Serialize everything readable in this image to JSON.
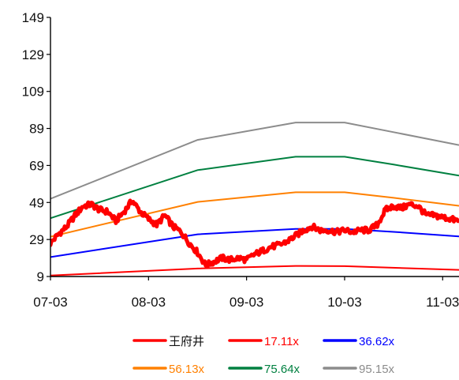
{
  "chart_data": {
    "type": "line",
    "title": "",
    "xlabel": "",
    "ylabel": "",
    "ylim": [
      9,
      149
    ],
    "yticks": [
      9,
      29,
      49,
      69,
      89,
      109,
      129,
      149
    ],
    "xticks": [
      "07-03",
      "08-03",
      "09-03",
      "10-03",
      "11-03"
    ],
    "xlim": [
      "2007-03",
      "2011-05"
    ],
    "grid": false,
    "legend_placement": "bottom",
    "series": [
      {
        "name": "王府井",
        "color": "#ff0000",
        "style": "thick",
        "points": [
          [
            "2007-03",
            27
          ],
          [
            "2007-04",
            32
          ],
          [
            "2007-05",
            36
          ],
          [
            "2007-06",
            42
          ],
          [
            "2007-07",
            47
          ],
          [
            "2007-08",
            48
          ],
          [
            "2007-09",
            45
          ],
          [
            "2007-10",
            44
          ],
          [
            "2007-11",
            39
          ],
          [
            "2007-12",
            44
          ],
          [
            "2008-01",
            50
          ],
          [
            "2008-02",
            44
          ],
          [
            "2008-03",
            40
          ],
          [
            "2008-04",
            37
          ],
          [
            "2008-05",
            42
          ],
          [
            "2008-06",
            36
          ],
          [
            "2008-07",
            33
          ],
          [
            "2008-08",
            27
          ],
          [
            "2008-09",
            22
          ],
          [
            "2008-10",
            15
          ],
          [
            "2008-11",
            17
          ],
          [
            "2008-12",
            19
          ],
          [
            "2009-01",
            18
          ],
          [
            "2009-02",
            19
          ],
          [
            "2009-03",
            18
          ],
          [
            "2009-04",
            21
          ],
          [
            "2009-05",
            23
          ],
          [
            "2009-06",
            25
          ],
          [
            "2009-07",
            26
          ],
          [
            "2009-08",
            28
          ],
          [
            "2009-09",
            31
          ],
          [
            "2009-10",
            34
          ],
          [
            "2009-11",
            36
          ],
          [
            "2009-12",
            34
          ],
          [
            "2010-01",
            34
          ],
          [
            "2010-02",
            33
          ],
          [
            "2010-03",
            34
          ],
          [
            "2010-04",
            33
          ],
          [
            "2010-05",
            34
          ],
          [
            "2010-06",
            34
          ],
          [
            "2010-07",
            37
          ],
          [
            "2010-08",
            45
          ],
          [
            "2010-09",
            47
          ],
          [
            "2010-10",
            46
          ],
          [
            "2010-11",
            48
          ],
          [
            "2010-12",
            47
          ],
          [
            "2011-01",
            42
          ],
          [
            "2011-02",
            42
          ],
          [
            "2011-03",
            41
          ],
          [
            "2011-04",
            40
          ],
          [
            "2011-05",
            39
          ]
        ]
      },
      {
        "name": "17.11x",
        "color": "#ff0000",
        "points": [
          [
            "2007-03",
            9.5
          ],
          [
            "2008-09",
            13.3
          ],
          [
            "2009-09",
            14.7
          ],
          [
            "2010-03",
            14.6
          ],
          [
            "2011-05",
            12.6
          ]
        ]
      },
      {
        "name": "36.62x",
        "color": "#0000ff",
        "points": [
          [
            "2007-03",
            19.5
          ],
          [
            "2008-09",
            31.8
          ],
          [
            "2009-09",
            34.7
          ],
          [
            "2010-03",
            34.7
          ],
          [
            "2010-09",
            33.1
          ],
          [
            "2011-05",
            30.7
          ]
        ]
      },
      {
        "name": "56.13x",
        "color": "#ff8000",
        "points": [
          [
            "2007-03",
            30.5
          ],
          [
            "2008-09",
            49.3
          ],
          [
            "2009-09",
            54.5
          ],
          [
            "2010-03",
            54.5
          ],
          [
            "2010-09",
            51.5
          ],
          [
            "2011-05",
            47.2
          ]
        ]
      },
      {
        "name": "75.64x",
        "color": "#008040",
        "points": [
          [
            "2007-03",
            40.5
          ],
          [
            "2008-09",
            66.5
          ],
          [
            "2009-09",
            73.7
          ],
          [
            "2010-03",
            73.7
          ],
          [
            "2010-09",
            69.5
          ],
          [
            "2011-05",
            63.5
          ]
        ]
      },
      {
        "name": "95.15x",
        "color": "#8c8c8c",
        "points": [
          [
            "2007-03",
            51
          ],
          [
            "2008-09",
            82.8
          ],
          [
            "2009-09",
            92.2
          ],
          [
            "2010-03",
            92.2
          ],
          [
            "2010-09",
            87
          ],
          [
            "2011-05",
            80
          ]
        ]
      }
    ]
  }
}
